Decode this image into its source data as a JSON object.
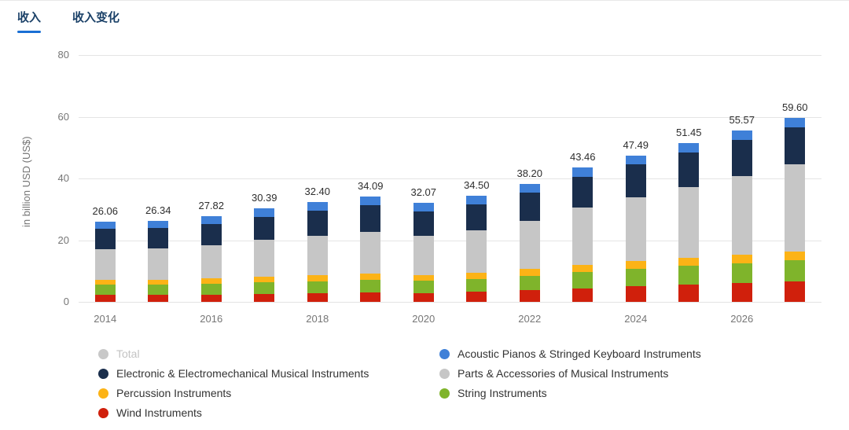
{
  "theme": {
    "accent": "#1a6fd4",
    "tab_text": "#1b4168",
    "axis_text": "#767676",
    "label_text": "#2e2e2e"
  },
  "tabs": [
    {
      "name": "revenue",
      "label": "收入",
      "active": true
    },
    {
      "name": "revenue-change",
      "label": "收入变化",
      "active": false
    }
  ],
  "chart_data": {
    "type": "bar",
    "stacked": true,
    "title": "",
    "xlabel": "",
    "ylabel": "in billion USD (US$)",
    "ylim": [
      0,
      80
    ],
    "yticks": [
      0,
      20,
      40,
      60,
      80
    ],
    "x_tick_step": 2,
    "grid": true,
    "legend_position": "bottom",
    "categories": [
      "2014",
      "2015",
      "2016",
      "2017",
      "2018",
      "2019",
      "2020",
      "2021",
      "2022",
      "2023",
      "2024",
      "2025",
      "2026",
      "2027"
    ],
    "totals": [
      26.06,
      26.34,
      27.82,
      30.39,
      32.4,
      34.09,
      32.07,
      34.5,
      38.2,
      43.46,
      47.49,
      51.45,
      55.57,
      59.6
    ],
    "series": [
      {
        "name": "Wind Instruments",
        "color": "#d0200c",
        "values": [
          2.2,
          2.2,
          2.4,
          2.6,
          2.8,
          3.0,
          2.9,
          3.2,
          3.7,
          4.4,
          5.0,
          5.5,
          6.0,
          6.5
        ]
      },
      {
        "name": "String Instruments",
        "color": "#7fb42b",
        "values": [
          3.3,
          3.3,
          3.5,
          3.7,
          3.9,
          4.1,
          3.9,
          4.2,
          4.7,
          5.3,
          5.8,
          6.2,
          6.6,
          7.0
        ]
      },
      {
        "name": "Percussion Instruments",
        "color": "#fcb316",
        "values": [
          1.7,
          1.7,
          1.8,
          1.9,
          2.0,
          2.1,
          1.9,
          2.0,
          2.2,
          2.4,
          2.5,
          2.6,
          2.7,
          2.8
        ]
      },
      {
        "name": "Parts & Accessories of Musical Instruments",
        "color": "#c6c6c6",
        "values": [
          9.8,
          10.0,
          10.6,
          11.8,
          12.8,
          13.6,
          12.7,
          13.8,
          15.6,
          18.4,
          20.6,
          23.0,
          25.5,
          28.2
        ]
      },
      {
        "name": "Electronic & Electromechanical Musical Instruments",
        "color": "#1a2e4c",
        "values": [
          6.6,
          6.7,
          7.0,
          7.6,
          8.1,
          8.5,
          8.0,
          8.5,
          9.2,
          10.1,
          10.7,
          11.2,
          11.7,
          12.0
        ]
      },
      {
        "name": "Acoustic Pianos & Stringed Keyboard Instruments",
        "color": "#3f80d8",
        "values": [
          2.46,
          2.44,
          2.52,
          2.79,
          2.8,
          2.79,
          2.67,
          2.8,
          2.8,
          2.86,
          2.89,
          2.95,
          3.07,
          3.1
        ]
      }
    ],
    "legend": {
      "items": [
        {
          "label": "Total",
          "color": "#c8c8c8",
          "inactive": true
        },
        {
          "label": "Acoustic Pianos & Stringed Keyboard Instruments",
          "color": "#3f80d8",
          "inactive": false
        },
        {
          "label": "Electronic & Electromechanical Musical Instruments",
          "color": "#1a2e4c",
          "inactive": false
        },
        {
          "label": "Parts & Accessories of Musical Instruments",
          "color": "#c6c6c6",
          "inactive": false
        },
        {
          "label": "Percussion Instruments",
          "color": "#fcb316",
          "inactive": false
        },
        {
          "label": "String Instruments",
          "color": "#7fb42b",
          "inactive": false
        },
        {
          "label": "Wind Instruments",
          "color": "#d0200c",
          "inactive": false
        }
      ]
    }
  }
}
